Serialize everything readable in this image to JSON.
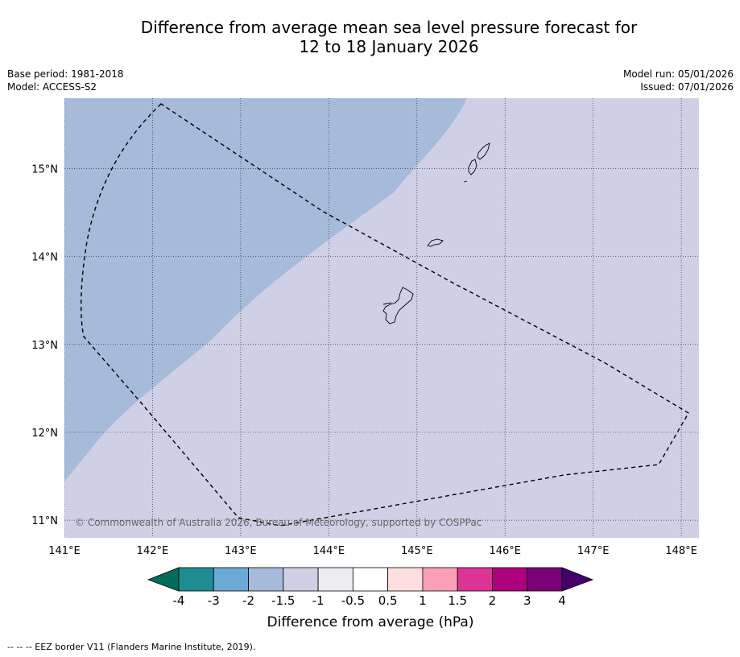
{
  "title": {
    "line1": "Difference from average mean sea level pressure forecast for",
    "line2": "12 to 18 January 2026"
  },
  "meta": {
    "base_period": "Base period: 1981-2018",
    "model": "Model: ACCESS-S2",
    "model_run": "Model run: 05/01/2026",
    "issued": "Issued: 07/01/2026"
  },
  "map": {
    "extent": {
      "lon": [
        141.0,
        148.2
      ],
      "lat": [
        10.8,
        15.8
      ]
    },
    "lon_ticks": [
      141,
      142,
      143,
      144,
      145,
      146,
      147,
      148
    ],
    "lat_ticks": [
      11,
      12,
      13,
      14,
      15
    ],
    "lon_tick_labels": [
      "141°E",
      "142°E",
      "143°E",
      "144°E",
      "145°E",
      "146°E",
      "147°E",
      "148°E"
    ],
    "lat_tick_labels": [
      "11°N",
      "12°N",
      "13°N",
      "14°N",
      "15°N"
    ],
    "background_category": "-1.5 to -1",
    "background_color": "#cfd0e5",
    "shaded_category": "-2 to -1.5",
    "shaded_color": "#a6bad9",
    "copyright": "© Commonwealth of Australia 2026, Bureau of Meteorology, supported by COSPPac"
  },
  "colorbar": {
    "labels": [
      "-4",
      "-3",
      "-2",
      "-1.5",
      "-1",
      "-0.5",
      "0.5",
      "1",
      "1.5",
      "2",
      "3",
      "4"
    ],
    "under_color": "#006d5b",
    "over_color": "#45006a",
    "colors": [
      "#1d8d93",
      "#6aaad4",
      "#a6bad9",
      "#cfd0e5",
      "#ececf1",
      "#ffffff",
      "#fde0dd",
      "#fa9fb5",
      "#dd3497",
      "#ae017e",
      "#7a0177"
    ],
    "title": "Difference from average (hPa)"
  },
  "footer": "--  --  -- EEZ border V11 (Flanders Marine Institute, 2019)."
}
